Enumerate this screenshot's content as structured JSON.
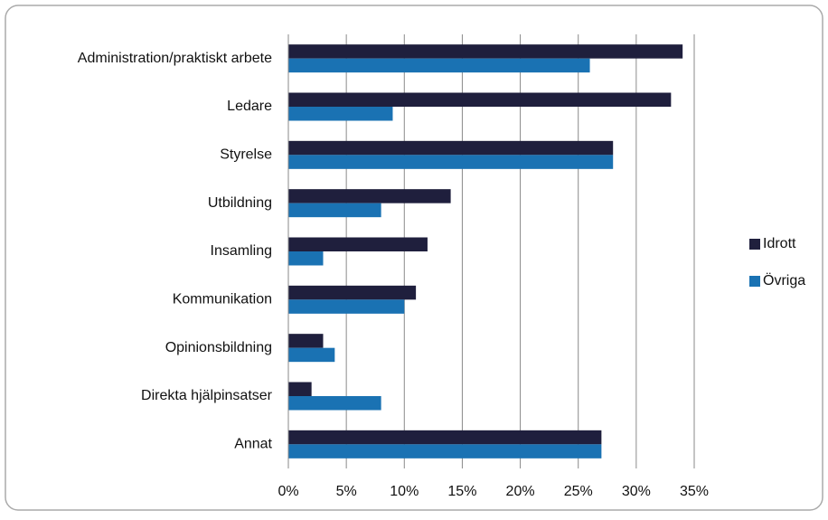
{
  "chart_data": {
    "type": "bar",
    "orientation": "horizontal",
    "categories": [
      "Administration/praktiskt arbete",
      "Ledare",
      "Styrelse",
      "Utbildning",
      "Insamling",
      "Kommunikation",
      "Opinionsbildning",
      "Direkta hjälpinsatser",
      "Annat"
    ],
    "series": [
      {
        "name": "Idrott",
        "color": "#1f1f3d",
        "values": [
          34,
          33,
          28,
          14,
          12,
          11,
          3,
          2,
          27
        ]
      },
      {
        "name": "Övriga",
        "color": "#1a72b3",
        "values": [
          26,
          9,
          28,
          8,
          3,
          10,
          4,
          8,
          27
        ]
      }
    ],
    "xlim": [
      0,
      35
    ],
    "xticks": [
      {
        "value": 0,
        "label": "0%"
      },
      {
        "value": 5,
        "label": "5%"
      },
      {
        "value": 10,
        "label": "10%"
      },
      {
        "value": 15,
        "label": "15%"
      },
      {
        "value": 20,
        "label": "20%"
      },
      {
        "value": 25,
        "label": "25%"
      },
      {
        "value": 30,
        "label": "30%"
      },
      {
        "value": 35,
        "label": "35%"
      }
    ],
    "grid": true,
    "legend": "right"
  }
}
